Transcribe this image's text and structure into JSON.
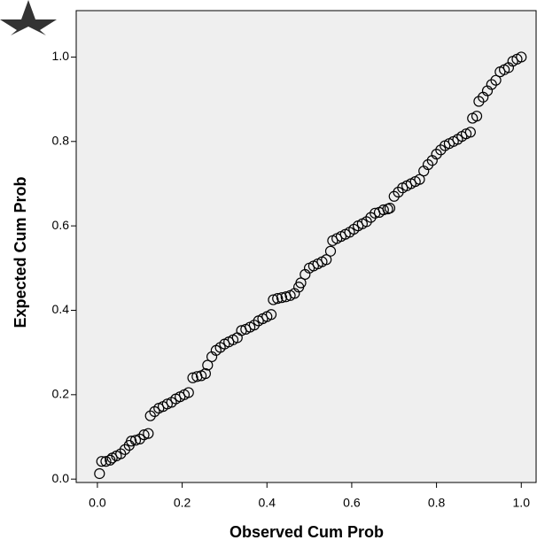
{
  "chart_data": {
    "type": "scatter",
    "xlabel": "Observed Cum Prob",
    "ylabel": "Expected Cum Prob",
    "xlim": [
      -0.05,
      1.035
    ],
    "ylim": [
      -0.008,
      1.11
    ],
    "xticks": [
      {
        "value": 0,
        "label": "0.0"
      },
      0.2,
      0.4,
      0.6,
      0.8,
      {
        "value": 1,
        "label": "1.0"
      }
    ],
    "yticks": [
      {
        "value": 0,
        "label": "0.0"
      },
      0.2,
      0.4,
      0.6,
      0.8,
      {
        "value": 1,
        "label": "1.0"
      }
    ],
    "grid": false,
    "color": "#000000",
    "background": "#efefef",
    "x": [
      0.005,
      0.01,
      0.02,
      0.03,
      0.035,
      0.045,
      0.055,
      0.065,
      0.075,
      0.08,
      0.09,
      0.1,
      0.11,
      0.12,
      0.125,
      0.135,
      0.145,
      0.155,
      0.165,
      0.175,
      0.185,
      0.195,
      0.205,
      0.215,
      0.225,
      0.235,
      0.245,
      0.255,
      0.26,
      0.27,
      0.28,
      0.29,
      0.3,
      0.31,
      0.32,
      0.33,
      0.34,
      0.35,
      0.36,
      0.37,
      0.38,
      0.39,
      0.4,
      0.41,
      0.415,
      0.425,
      0.435,
      0.445,
      0.455,
      0.465,
      0.475,
      0.48,
      0.49,
      0.5,
      0.51,
      0.52,
      0.53,
      0.54,
      0.55,
      0.555,
      0.565,
      0.575,
      0.585,
      0.595,
      0.605,
      0.615,
      0.625,
      0.635,
      0.645,
      0.655,
      0.665,
      0.675,
      0.685,
      0.69,
      0.7,
      0.71,
      0.72,
      0.73,
      0.74,
      0.75,
      0.76,
      0.77,
      0.78,
      0.79,
      0.8,
      0.81,
      0.82,
      0.83,
      0.84,
      0.85,
      0.86,
      0.87,
      0.88,
      0.885,
      0.895,
      0.9,
      0.91,
      0.92,
      0.93,
      0.94,
      0.95,
      0.96,
      0.97,
      0.98,
      0.99,
      1.0
    ],
    "values": [
      0.013,
      0.042,
      0.042,
      0.045,
      0.05,
      0.055,
      0.06,
      0.07,
      0.08,
      0.09,
      0.092,
      0.095,
      0.105,
      0.108,
      0.15,
      0.16,
      0.168,
      0.172,
      0.178,
      0.182,
      0.19,
      0.195,
      0.2,
      0.205,
      0.24,
      0.243,
      0.245,
      0.25,
      0.27,
      0.29,
      0.305,
      0.312,
      0.32,
      0.325,
      0.33,
      0.335,
      0.352,
      0.355,
      0.36,
      0.365,
      0.375,
      0.38,
      0.385,
      0.39,
      0.425,
      0.428,
      0.43,
      0.432,
      0.435,
      0.44,
      0.455,
      0.465,
      0.485,
      0.5,
      0.505,
      0.51,
      0.515,
      0.52,
      0.54,
      0.565,
      0.57,
      0.575,
      0.58,
      0.585,
      0.592,
      0.6,
      0.605,
      0.61,
      0.62,
      0.63,
      0.632,
      0.638,
      0.64,
      0.642,
      0.67,
      0.68,
      0.69,
      0.695,
      0.7,
      0.705,
      0.71,
      0.73,
      0.745,
      0.755,
      0.77,
      0.78,
      0.79,
      0.795,
      0.8,
      0.805,
      0.812,
      0.818,
      0.822,
      0.855,
      0.86,
      0.895,
      0.905,
      0.92,
      0.935,
      0.945,
      0.965,
      0.97,
      0.975,
      0.99,
      0.995,
      1.0
    ]
  }
}
